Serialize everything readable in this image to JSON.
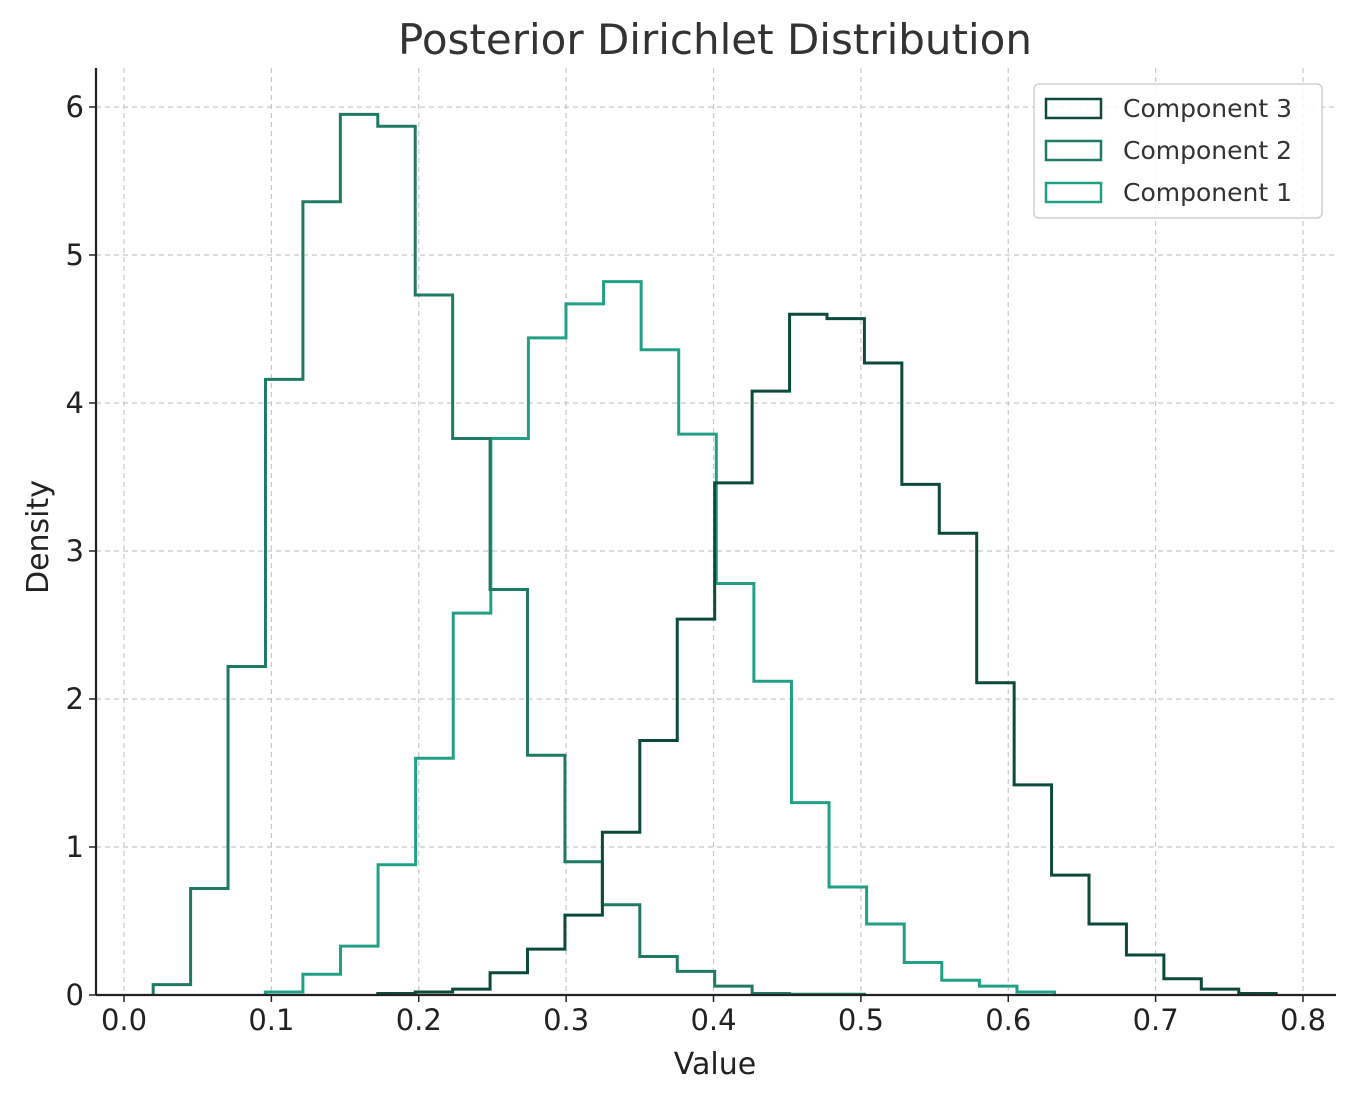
{
  "chart_data": {
    "type": "histogram-step",
    "title": "Posterior Dirichlet Distribution",
    "xlabel": "Value",
    "ylabel": "Density",
    "xlim": [
      -0.02,
      0.82
    ],
    "ylim": [
      0,
      6.25
    ],
    "xticks": [
      "0.0",
      "0.1",
      "0.2",
      "0.3",
      "0.4",
      "0.5",
      "0.6",
      "0.7",
      "0.8"
    ],
    "xtick_values": [
      0.0,
      0.1,
      0.2,
      0.3,
      0.4,
      0.5,
      0.6,
      0.7,
      0.8
    ],
    "yticks": [
      "0",
      "1",
      "2",
      "3",
      "4",
      "5",
      "6"
    ],
    "ytick_values": [
      0,
      1,
      2,
      3,
      4,
      5,
      6
    ],
    "grid": true,
    "legend_position": "top-right",
    "series": [
      {
        "name": "Component 1",
        "color": "#21a086",
        "edges": [
          0.0959,
          0.1214,
          0.1469,
          0.1724,
          0.1979,
          0.2234,
          0.2489,
          0.2744,
          0.2999,
          0.3254,
          0.3509,
          0.3764,
          0.4019,
          0.4274,
          0.4529,
          0.4784,
          0.5039,
          0.5294,
          0.5549,
          0.5804,
          0.6059,
          0.6314
        ],
        "values": [
          0.02,
          0.14,
          0.33,
          0.88,
          1.6,
          2.58,
          3.76,
          4.44,
          4.67,
          4.82,
          4.36,
          3.79,
          2.78,
          2.12,
          1.3,
          0.73,
          0.48,
          0.22,
          0.1,
          0.06,
          0.02
        ]
      },
      {
        "name": "Component 2",
        "color": "#1f7a65",
        "edges": [
          0.0198,
          0.0452,
          0.0706,
          0.096,
          0.1214,
          0.1468,
          0.1722,
          0.1976,
          0.223,
          0.2484,
          0.2738,
          0.2992,
          0.3246,
          0.35,
          0.3754,
          0.4008,
          0.4262,
          0.4516,
          0.477,
          0.5024
        ],
        "values": [
          0.07,
          0.72,
          2.22,
          4.16,
          5.36,
          5.95,
          5.87,
          4.73,
          3.76,
          2.74,
          1.62,
          0.9,
          0.61,
          0.26,
          0.16,
          0.06,
          0.01,
          0.005,
          0.005
        ]
      },
      {
        "name": "Component 3",
        "color": "#0c4a3c",
        "edges": [
          0.1722,
          0.1976,
          0.223,
          0.2484,
          0.2738,
          0.2992,
          0.3246,
          0.35,
          0.3754,
          0.4008,
          0.4262,
          0.4516,
          0.477,
          0.5024,
          0.5278,
          0.5532,
          0.5786,
          0.604,
          0.6294,
          0.6548,
          0.6802,
          0.7056,
          0.731,
          0.7564,
          0.7818
        ],
        "values": [
          0.01,
          0.02,
          0.04,
          0.15,
          0.31,
          0.54,
          1.1,
          1.72,
          2.54,
          3.46,
          4.08,
          4.6,
          4.57,
          4.27,
          3.45,
          3.12,
          2.11,
          1.42,
          0.81,
          0.48,
          0.27,
          0.11,
          0.04,
          0.01
        ]
      }
    ],
    "legend_order": [
      "Component 3",
      "Component 2",
      "Component 1"
    ]
  }
}
